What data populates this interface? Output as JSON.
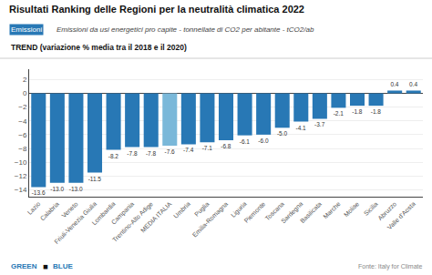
{
  "chart_data": {
    "type": "bar",
    "title": "Risultati Ranking delle Regioni per la neutralità climatica 2022",
    "subtitle": "Emissioni da usi energetici pro capite - tonnellate di CO2 per abitante - tCO2/ab",
    "annotations": [
      "Emissioni",
      "TREND (variazione % media tra il 2018 e il 2020)",
      "GREEN",
      "◼",
      "BLUE",
      "Fonte: Italy for Climate"
    ],
    "categories": [
      "Lazio",
      "Calabria",
      "Veneto",
      "Friuli-Venezia Giulia",
      "Lombardia",
      "Campania",
      "Trentino-Alto Adige",
      "MEDIA ITALIA",
      "Umbria",
      "Puglia",
      "Emilia-Romagna",
      "Liguria",
      "Piemonte",
      "Toscana",
      "Sardegna",
      "Basilicata",
      "Marche",
      "Molise",
      "Sicilia",
      "Abruzzo",
      "Valle d'Aosta"
    ],
    "values": [
      -13.6,
      -13.0,
      -13.0,
      -11.5,
      -8.2,
      -7.8,
      -7.8,
      -7.6,
      -7.4,
      -7.1,
      -6.8,
      -6.1,
      -6.0,
      -5.0,
      -4.1,
      -3.7,
      -2.1,
      -1.8,
      -1.8,
      0.4,
      0.4
    ],
    "value_labels": [
      "-13.6",
      "-13.0",
      "-13.0",
      "-11.5",
      "-8.2",
      "-7.8",
      "-7.8",
      "-7.6",
      "-7.4",
      "-7.1",
      "-6.8",
      "-6.1",
      "-6.0",
      "-5.0",
      "-4.1",
      "-3.7",
      "-2.1",
      "-1.8",
      "-1.8",
      "0.4",
      "0.4"
    ],
    "data_labels": true,
    "color": "#2878b5",
    "colors": [
      "#2878b5",
      "#2878b5",
      "#2878b5",
      "#2878b5",
      "#2878b5",
      "#2878b5",
      "#2878b5",
      "#7ab8d9",
      "#2878b5",
      "#2878b5",
      "#2878b5",
      "#2878b5",
      "#2878b5",
      "#2878b5",
      "#2878b5",
      "#2878b5",
      "#2878b5",
      "#2878b5",
      "#2878b5",
      "#2878b5",
      "#2878b5"
    ],
    "ylim": [
      -15,
      3.5
    ],
    "yticks": [
      2,
      0,
      -2,
      -4,
      -6,
      -8,
      -10,
      -12,
      -14
    ],
    "grid": true
  }
}
